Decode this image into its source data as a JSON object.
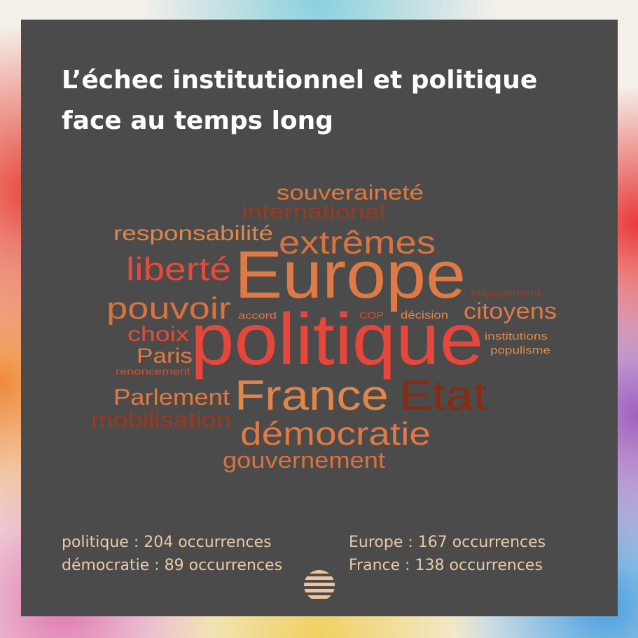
{
  "title_lines": [
    "L’échec institutionnel et politique",
    "face au temps long"
  ],
  "words": [
    "souveraineté",
    "international",
    "responsabilité",
    "extrêmes",
    "liberté",
    "Europe",
    "engagement",
    "pouvoir",
    "accord",
    "COP",
    "décision",
    "citoyens",
    "choix",
    "politique",
    "institutions",
    "populisme",
    "Paris",
    "renoncement",
    "Parlement",
    "France",
    "Etat",
    "mobilisation",
    "démocratie",
    "gouvernement"
  ],
  "stats": [
    "politique : 204 occurrences",
    "Europe : 167 occurrences",
    "démocratie : 89 occurrences",
    "France : 138 occurrences"
  ]
}
